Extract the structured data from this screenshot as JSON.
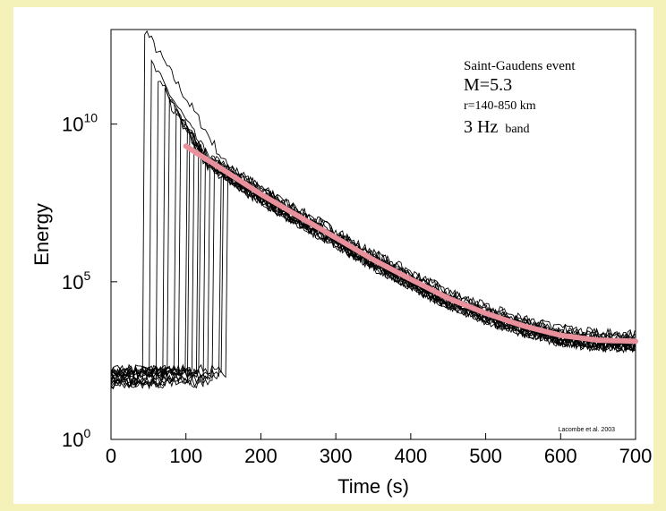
{
  "chart_data": {
    "type": "line",
    "xlabel": "Time (s)",
    "ylabel": "Energy",
    "xlim": [
      0,
      700
    ],
    "ylim": [
      1,
      10000000000000.0
    ],
    "yscale": "log",
    "x_ticks": [
      0,
      100,
      200,
      300,
      400,
      500,
      600,
      700
    ],
    "x_tick_labels": [
      "0",
      "100",
      "200",
      "300",
      "400",
      "500",
      "600",
      "700"
    ],
    "y_ticks": [
      {
        "value": 1,
        "base": "10",
        "exp": "0"
      },
      {
        "value": 100000,
        "base": "10",
        "exp": "5"
      },
      {
        "value": 10000000000,
        "base": "10",
        "exp": "10"
      }
    ],
    "annotations": [
      "Saint-Gaudens event",
      "M=5.3",
      "r=140-850 km",
      "3 Hz",
      "band"
    ],
    "credit": "Lacombe et al. 2003",
    "colors": {
      "traces": "#000000",
      "fit": "#e8909c",
      "background": "#f4f2b8"
    },
    "trace_arrivals": [
      45,
      52,
      62,
      70,
      78,
      85,
      92,
      100,
      105,
      110,
      115,
      120,
      126,
      132,
      138,
      145,
      150,
      155
    ],
    "trace_peaks": [
      [
        45,
        10000000000000.0
      ],
      [
        52,
        1000000000000.0
      ],
      [
        62,
        300000000000.0
      ],
      [
        70,
        120000000000.0
      ],
      [
        78,
        50000000000.0
      ],
      [
        85,
        30000000000.0
      ],
      [
        92,
        20000000000.0
      ],
      [
        100,
        10000000000.0
      ],
      [
        105,
        6000000000.0
      ],
      [
        110,
        3000000000.0
      ],
      [
        115,
        2000000000.0
      ],
      [
        120,
        1000000000.0
      ],
      [
        126,
        600000000.0
      ],
      [
        132,
        300000000.0
      ],
      [
        138,
        150000000.0
      ],
      [
        145,
        80000000.0
      ],
      [
        150,
        30000000.0
      ],
      [
        155,
        15000000.0
      ]
    ],
    "coda_fit": {
      "name": "",
      "x": [
        100,
        150,
        200,
        250,
        300,
        350,
        400,
        450,
        500,
        550,
        600,
        650,
        700
      ],
      "y": [
        2000000000.0,
        350000000.0,
        60000000.0,
        12000000.0,
        2500000.0,
        500000.0,
        120000.0,
        30000.0,
        10000.0,
        4000,
        2000,
        1400,
        1300
      ]
    }
  }
}
